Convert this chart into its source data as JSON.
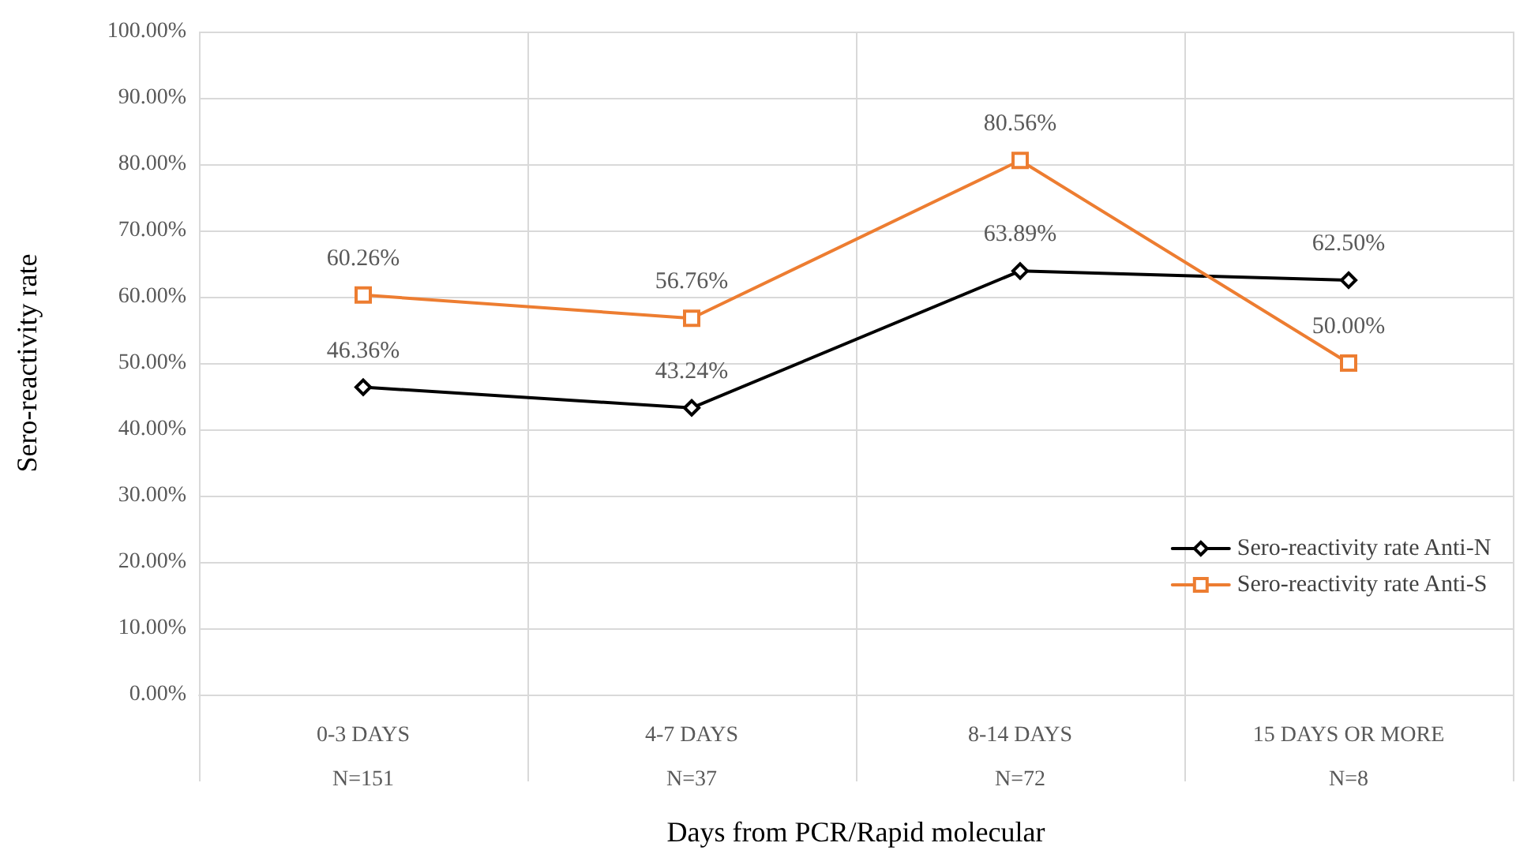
{
  "chart_data": {
    "type": "line",
    "xlabel": "Days from PCR/Rapid molecular",
    "ylabel": "Sero-reactivity rate",
    "categories": [
      "0-3 DAYS\nN=151",
      "4-7 DAYS\nN=37",
      "8-14 DAYS\nN=72",
      "15 DAYS OR MORE\nN=8"
    ],
    "series": [
      {
        "name": "Sero-reactivity rate Anti-N",
        "color": "#000000",
        "marker": "diamond",
        "values": [
          46.36,
          43.24,
          63.89,
          62.5
        ],
        "value_labels": [
          "46.36%",
          "43.24%",
          "63.89%",
          "62.50%"
        ]
      },
      {
        "name": "Sero-reactivity rate Anti-S",
        "color": "#ed7d31",
        "marker": "square",
        "values": [
          60.26,
          56.76,
          80.56,
          50.0
        ],
        "value_labels": [
          "60.26%",
          "56.76%",
          "80.56%",
          "50.00%"
        ]
      }
    ],
    "ylim": [
      0,
      100
    ],
    "yticks": [
      {
        "value": 0,
        "label": "0.00%"
      },
      {
        "value": 10,
        "label": "10.00%"
      },
      {
        "value": 20,
        "label": "20.00%"
      },
      {
        "value": 30,
        "label": "30.00%"
      },
      {
        "value": 40,
        "label": "40.00%"
      },
      {
        "value": 50,
        "label": "50.00%"
      },
      {
        "value": 60,
        "label": "60.00%"
      },
      {
        "value": 70,
        "label": "70.00%"
      },
      {
        "value": 80,
        "label": "80.00%"
      },
      {
        "value": 90,
        "label": "90.00%"
      },
      {
        "value": 100,
        "label": "100.00%"
      }
    ],
    "grid": true,
    "legend": "right",
    "line_style": "solid"
  }
}
